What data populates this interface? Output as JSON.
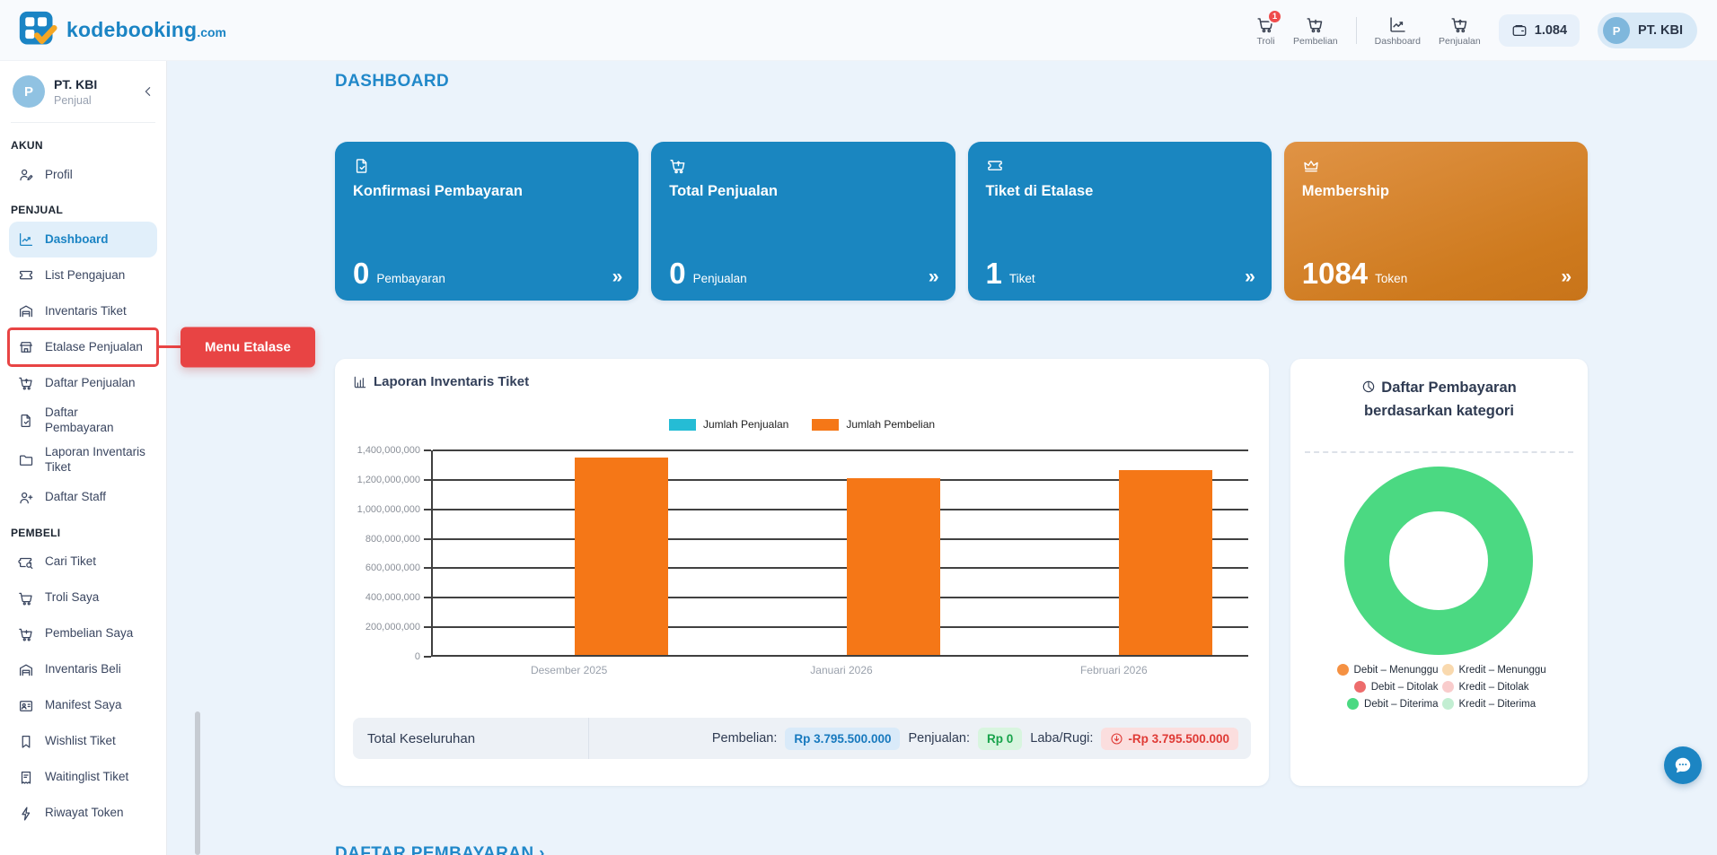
{
  "colors": {
    "primary_blue": "#1B84C4",
    "card_blue": "#1A86C0",
    "card_orange": "#CE7A1E",
    "annotation_red": "#E84444",
    "bar_orange": "#F57717",
    "legend_cyan": "#25BCD5",
    "donut_green": "#4BD982",
    "badge_blue_text": "#1779BE",
    "badge_green_text": "#17A34A",
    "badge_red_text": "#DF3A35"
  },
  "header": {
    "logo": {
      "brand": "kodebooking",
      "tld": ".com"
    },
    "nav": [
      {
        "label": "Troli",
        "icon": "cart-icon",
        "badge": "1"
      },
      {
        "label": "Pembelian",
        "icon": "cart-plus-icon"
      },
      {
        "label": "Dashboard",
        "icon": "chart-line-icon"
      },
      {
        "label": "Penjualan",
        "icon": "cart-up-icon"
      }
    ],
    "token_pill": {
      "icon": "wallet-icon",
      "value": "1.084"
    },
    "account_pill": {
      "initial": "P",
      "name": "PT. KBI"
    }
  },
  "sidebar": {
    "profile": {
      "initial": "P",
      "name": "PT. KBI",
      "role": "Penjual"
    },
    "sections": [
      {
        "label": "AKUN",
        "items": [
          {
            "label": "Profil",
            "icon": "user-edit-icon"
          }
        ]
      },
      {
        "label": "PENJUAL",
        "items": [
          {
            "label": "Dashboard",
            "icon": "chart-line-icon",
            "active": true
          },
          {
            "label": "List Pengajuan",
            "icon": "ticket-icon"
          },
          {
            "label": "Inventaris Tiket",
            "icon": "warehouse-icon"
          },
          {
            "label": "Etalase Penjualan",
            "icon": "store-icon",
            "highlighted": true
          },
          {
            "label": "Daftar Penjualan",
            "icon": "cart-up-icon"
          },
          {
            "label": "Daftar Pembayaran",
            "icon": "doc-check-icon"
          },
          {
            "label": "Laporan Inventaris Tiket",
            "icon": "folder-icon"
          },
          {
            "label": "Daftar Staff",
            "icon": "user-plus-icon"
          }
        ]
      },
      {
        "label": "PEMBELI",
        "items": [
          {
            "label": "Cari Tiket",
            "icon": "ticket-search-icon"
          },
          {
            "label": "Troli Saya",
            "icon": "cart-icon"
          },
          {
            "label": "Pembelian Saya",
            "icon": "cart-plus-icon"
          },
          {
            "label": "Inventaris Beli",
            "icon": "warehouse-icon"
          },
          {
            "label": "Manifest Saya",
            "icon": "id-card-icon"
          },
          {
            "label": "Wishlist Tiket",
            "icon": "bookmark-icon"
          },
          {
            "label": "Waitinglist Tiket",
            "icon": "receipt-icon"
          },
          {
            "label": "Riwayat Token",
            "icon": "bolt-icon"
          }
        ]
      }
    ]
  },
  "annotation": {
    "label": "Menu Etalase"
  },
  "main": {
    "title": "DASHBOARD",
    "cards": [
      {
        "title": "Konfirmasi Pembayaran",
        "icon": "doc-check-icon",
        "value": "0",
        "unit": "Pembayaran",
        "arrow": "»",
        "variant": "blue"
      },
      {
        "title": "Total Penjualan",
        "icon": "cart-up-icon",
        "value": "0",
        "unit": "Penjualan",
        "arrow": "»",
        "variant": "blue"
      },
      {
        "title": "Tiket di Etalase",
        "icon": "ticket-icon",
        "value": "1",
        "unit": "Tiket",
        "arrow": "»",
        "variant": "blue"
      },
      {
        "title": "Membership",
        "icon": "crown-icon",
        "value": "1084",
        "unit": "Token",
        "arrow": "»",
        "variant": "orange"
      }
    ],
    "bottom_link": "DAFTAR PEMBAYARAN ›"
  },
  "chart_data": [
    {
      "type": "bar",
      "title": "Laporan Inventaris Tiket",
      "categories": [
        "Desember 2025",
        "Januari 2026",
        "Februari 2026"
      ],
      "series": [
        {
          "name": "Jumlah Penjualan",
          "color": "#25BCD5",
          "values": [
            0,
            0,
            0
          ]
        },
        {
          "name": "Jumlah Pembelian",
          "color": "#F57717",
          "values": [
            1340000000,
            1200000000,
            1255500000
          ]
        }
      ],
      "ylim": [
        0,
        1400000000
      ],
      "ytick_step": 200000000,
      "grid": true,
      "legend_position": "top"
    },
    {
      "type": "donut",
      "title_line1": "Daftar Pembayaran",
      "title_line2": "berdasarkan kategori",
      "slices": [
        {
          "label": "Debit – Menunggu",
          "color": "#F59142",
          "value": 0
        },
        {
          "label": "Kredit – Menunggu",
          "color": "#F9D9AE",
          "value": 0
        },
        {
          "label": "Debit – Ditolak",
          "color": "#ED6C6C",
          "value": 0
        },
        {
          "label": "Kredit – Ditolak",
          "color": "#F9CCCC",
          "value": 0
        },
        {
          "label": "Debit – Diterima",
          "color": "#4BD982",
          "value": 100
        },
        {
          "label": "Kredit – Diterima",
          "color": "#C2EED2",
          "value": 0
        }
      ],
      "legend_position": "bottom"
    }
  ],
  "totals": {
    "label": "Total Keseluruhan",
    "pembelian_label": "Pembelian:",
    "pembelian_value": "Rp 3.795.500.000",
    "penjualan_label": "Penjualan:",
    "penjualan_value": "Rp 0",
    "laba_label": "Laba/Rugi:",
    "laba_value": "-Rp 3.795.500.000"
  }
}
